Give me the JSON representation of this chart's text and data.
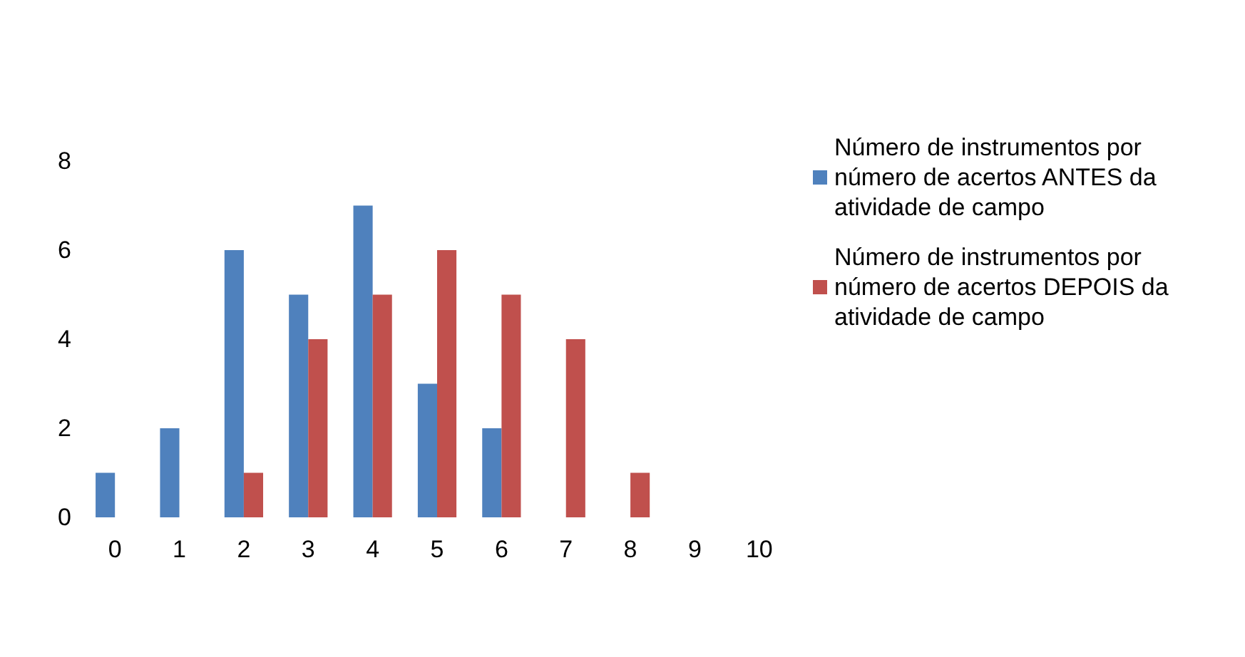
{
  "chart_data": {
    "type": "bar",
    "categories": [
      "0",
      "1",
      "2",
      "3",
      "4",
      "5",
      "6",
      "7",
      "8",
      "9",
      "10"
    ],
    "series": [
      {
        "name": "Número de instrumentos por número de acertos ANTES da atividade de campo",
        "color": "#4f81bd",
        "values": [
          1,
          2,
          6,
          5,
          7,
          3,
          2,
          0,
          0,
          0,
          0
        ]
      },
      {
        "name": "Número de instrumentos por número de acertos DEPOIS da atividade de campo",
        "color": "#c0504d",
        "values": [
          0,
          0,
          1,
          4,
          5,
          6,
          5,
          4,
          1,
          0,
          0
        ]
      }
    ],
    "ylim": [
      0,
      8
    ],
    "yticks": [
      0,
      2,
      4,
      6,
      8
    ],
    "grid": false,
    "legend": "right"
  }
}
